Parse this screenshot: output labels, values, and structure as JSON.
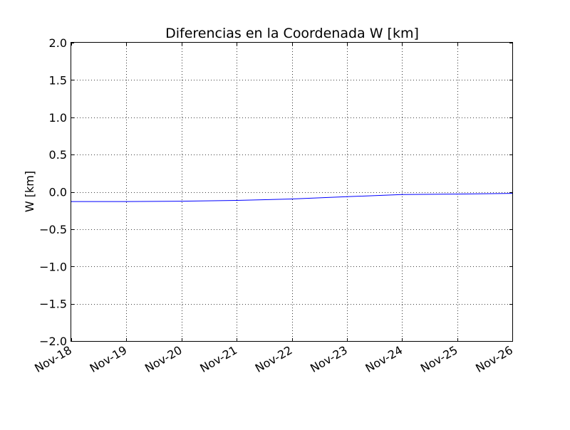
{
  "chart_data": {
    "type": "line",
    "title": "Diferencias en la Coordenada W [km]",
    "xlabel": "",
    "ylabel": "W [km]",
    "x_ticks": [
      "Nov-18",
      "Nov-19",
      "Nov-20",
      "Nov-21",
      "Nov-22",
      "Nov-23",
      "Nov-24",
      "Nov-25",
      "Nov-26"
    ],
    "y_ticks": [
      "2.0",
      "1.5",
      "1.0",
      "0.5",
      "0.0",
      "−0.5",
      "−1.0",
      "−1.5",
      "−2.0"
    ],
    "ylim": [
      -2.0,
      2.0
    ],
    "xlim": [
      "Nov-18",
      "Nov-26"
    ],
    "grid": true,
    "series": [
      {
        "color": "#0000ff",
        "x": [
          "Nov-18",
          "Nov-19",
          "Nov-20",
          "Nov-21",
          "Nov-22",
          "Nov-23",
          "Nov-24",
          "Nov-25",
          "Nov-26"
        ],
        "y": [
          -0.13,
          -0.13,
          -0.125,
          -0.115,
          -0.095,
          -0.065,
          -0.035,
          -0.03,
          -0.02
        ]
      }
    ]
  }
}
